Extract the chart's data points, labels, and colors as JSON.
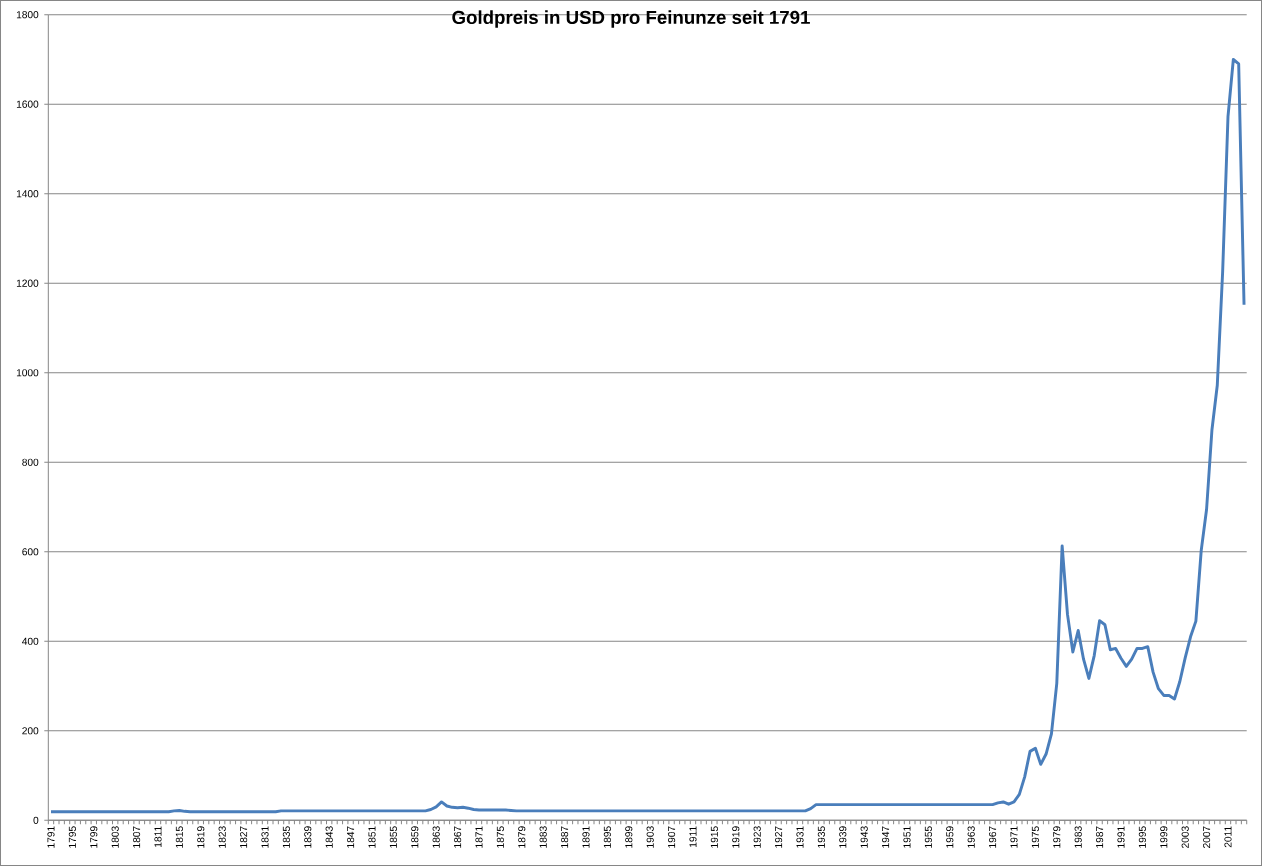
{
  "chart_data": {
    "type": "line",
    "title": "Goldpreis in USD pro Feinunze seit 1791",
    "categories": [
      "1791",
      null,
      null,
      null,
      "1795",
      null,
      null,
      null,
      "1799",
      null,
      null,
      null,
      "1803",
      null,
      null,
      null,
      "1807",
      null,
      null,
      null,
      "1811",
      null,
      null,
      null,
      "1815",
      null,
      null,
      null,
      "1819",
      null,
      null,
      null,
      "1823",
      null,
      null,
      null,
      "1827",
      null,
      null,
      null,
      "1831",
      null,
      null,
      null,
      "1835",
      null,
      null,
      null,
      "1839",
      null,
      null,
      null,
      "1843",
      null,
      null,
      null,
      "1847",
      null,
      null,
      null,
      "1851",
      null,
      null,
      null,
      "1855",
      null,
      null,
      null,
      "1859",
      null,
      null,
      null,
      "1863",
      null,
      null,
      null,
      "1867",
      null,
      null,
      null,
      "1871",
      null,
      null,
      null,
      "1875",
      null,
      null,
      null,
      "1879",
      null,
      null,
      null,
      "1883",
      null,
      null,
      null,
      "1887",
      null,
      null,
      null,
      "1891",
      null,
      null,
      null,
      "1895",
      null,
      null,
      null,
      "1899",
      null,
      null,
      null,
      "1903",
      null,
      null,
      null,
      "1907",
      null,
      null,
      null,
      "1911",
      null,
      null,
      null,
      "1915",
      null,
      null,
      null,
      "1919",
      null,
      null,
      null,
      "1923",
      null,
      null,
      null,
      "1927",
      null,
      null,
      null,
      "1931",
      null,
      null,
      null,
      "1935",
      null,
      null,
      null,
      "1939",
      null,
      null,
      null,
      "1943",
      null,
      null,
      null,
      "1947",
      null,
      null,
      null,
      "1951",
      null,
      null,
      null,
      "1955",
      null,
      null,
      null,
      "1959",
      null,
      null,
      null,
      "1963",
      null,
      null,
      null,
      "1967",
      null,
      null,
      null,
      "1971",
      null,
      null,
      null,
      "1975",
      null,
      null,
      null,
      "1979",
      null,
      null,
      null,
      "1983",
      null,
      null,
      null,
      "1987",
      null,
      null,
      null,
      "1991",
      null,
      null,
      null,
      "1995",
      null,
      null,
      null,
      "1999",
      null,
      null,
      null,
      "2003",
      null,
      null,
      null,
      "2007",
      null,
      null,
      null,
      "2011",
      null,
      null,
      null
    ],
    "values": [
      19,
      19,
      19,
      19,
      19,
      19,
      19,
      19,
      19,
      19,
      19,
      19,
      19,
      19,
      19,
      19,
      19,
      19,
      19,
      19,
      19,
      19,
      19,
      21,
      22,
      20,
      19,
      19,
      19,
      19,
      19,
      19,
      19,
      19,
      19,
      19,
      19,
      19,
      19,
      19,
      19,
      19,
      19,
      21,
      21,
      21,
      21,
      21,
      21,
      21,
      21,
      21,
      21,
      21,
      21,
      21,
      21,
      21,
      21,
      21,
      21,
      21,
      21,
      21,
      21,
      21,
      21,
      21,
      21,
      21,
      21,
      24,
      30,
      41,
      32,
      29,
      28,
      29,
      27,
      24,
      23,
      23,
      23,
      23,
      23,
      23,
      22,
      21,
      21,
      21,
      21,
      21,
      21,
      21,
      21,
      21,
      21,
      21,
      21,
      21,
      21,
      21,
      21,
      21,
      21,
      21,
      21,
      21,
      21,
      21,
      21,
      21,
      21,
      21,
      21,
      21,
      21,
      21,
      21,
      21,
      21,
      21,
      21,
      21,
      21,
      21,
      21,
      21,
      21,
      21,
      21,
      21,
      21,
      21,
      21,
      21,
      21,
      21,
      21,
      21,
      21,
      21,
      26,
      35,
      35,
      35,
      35,
      35,
      35,
      35,
      35,
      35,
      35,
      35,
      35,
      35,
      35,
      35,
      35,
      35,
      35,
      35,
      35,
      35,
      35,
      35,
      35,
      35,
      35,
      35,
      35,
      35,
      35,
      35,
      35,
      35,
      35,
      39,
      41,
      36,
      41,
      58,
      97,
      154,
      161,
      125,
      148,
      193,
      306,
      613,
      460,
      376,
      424,
      360,
      317,
      368,
      446,
      437,
      381,
      384,
      362,
      344,
      360,
      384,
      384,
      388,
      331,
      294,
      279,
      279,
      271,
      310,
      363,
      410,
      445,
      603,
      695,
      872,
      972,
      1225,
      1572,
      1700,
      1690,
      1152
    ],
    "color": "#4a7ebb",
    "line_style": "solid",
    "marker": "none",
    "ylim": [
      0,
      1800
    ],
    "yticks": [
      0,
      200,
      400,
      600,
      800,
      1000,
      1200,
      1400,
      1600,
      1800
    ],
    "grid": "y"
  }
}
